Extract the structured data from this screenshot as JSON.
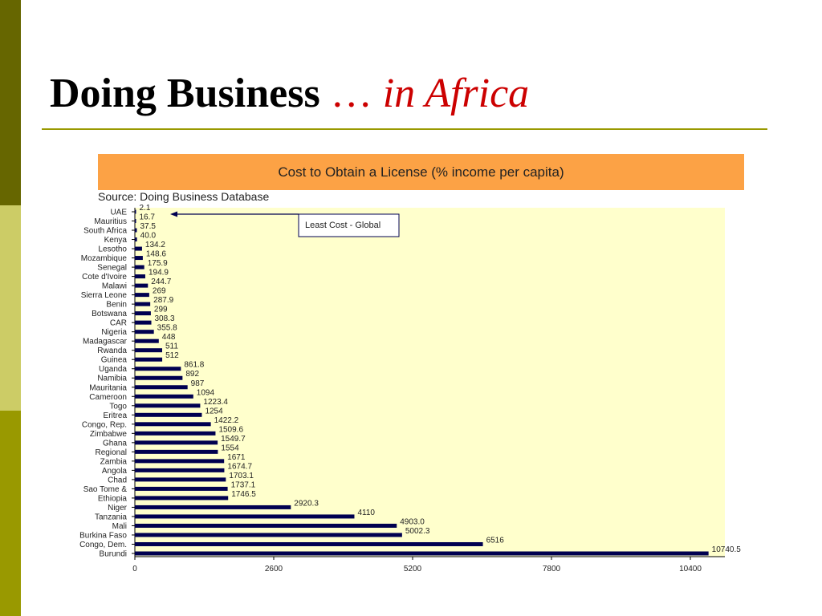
{
  "slide": {
    "title_main": "Doing Business",
    "title_ellipsis": "…",
    "title_accent": "in Africa"
  },
  "chart_data": {
    "type": "bar",
    "orientation": "horizontal",
    "title": "Cost to Obtain a License (% income per capita)",
    "source": "Source: Doing Business Database",
    "annotation": "Least Cost - Global",
    "xlim": [
      0,
      10400
    ],
    "xticks": [
      "0",
      "2600",
      "5200",
      "7800",
      "10400"
    ],
    "categories": [
      "UAE",
      "Mauritius",
      "South Africa",
      "Kenya",
      "Lesotho",
      "Mozambique",
      "Senegal",
      "Cote d'Ivoire",
      "Malawi",
      "Sierra Leone",
      "Benin",
      "Botswana",
      "CAR",
      "Nigeria",
      "Madagascar",
      "Rwanda",
      "Guinea",
      "Uganda",
      "Namibia",
      "Mauritania",
      "Cameroon",
      "Togo",
      "Eritrea",
      "Congo, Rep.",
      "Zimbabwe",
      "Ghana",
      "Regional",
      "Zambia",
      "Angola",
      "Chad",
      "Sao Tome &",
      "Ethiopia",
      "Niger",
      "Tanzania",
      "Mali",
      "Burkina Faso",
      "Congo, Dem.",
      "Burundi"
    ],
    "values": [
      2.1,
      16.7,
      37.5,
      40.0,
      134.2,
      148.6,
      175.9,
      194.9,
      244.7,
      269,
      287.9,
      299,
      308.3,
      355.8,
      448,
      511,
      512,
      861.8,
      892,
      987,
      1094,
      1223.4,
      1254,
      1422.2,
      1509.6,
      1549.7,
      1554,
      1671,
      1674.7,
      1703.1,
      1737.1,
      1746.5,
      2920.3,
      4110,
      4903.0,
      5002.3,
      6516,
      10740.5
    ],
    "value_labels": [
      "2.1",
      "16.7",
      "37.5",
      "40.0",
      "134.2",
      "148.6",
      "175.9",
      "194.9",
      "244.7",
      "269",
      "287.9",
      "299",
      "308.3",
      "355.8",
      "448",
      "511",
      "512",
      "861.8",
      "892",
      "987",
      "1094",
      "1223.4",
      "1254",
      "1422.2",
      "1509.6",
      "1549.7",
      "1554",
      "1671",
      "1674.7",
      "1703.1",
      "1737.1",
      "1746.5",
      "2920.3",
      "4110",
      "4903.0",
      "5002.3",
      "6516",
      "10740.5"
    ],
    "colors": {
      "bar": "#000050",
      "plot_bg": "#ffffcc",
      "header_bg": "#fca245"
    }
  }
}
